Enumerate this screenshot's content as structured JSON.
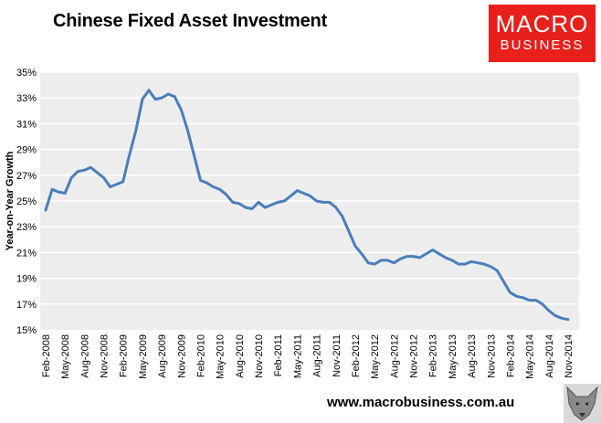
{
  "chart_data": {
    "type": "line",
    "title": "Chinese Fixed Asset Investment",
    "ylabel": "Year-on-Year Growth",
    "xlabel": "",
    "ylim": [
      15,
      35
    ],
    "yticks": [
      "15%",
      "17%",
      "19%",
      "21%",
      "23%",
      "25%",
      "27%",
      "29%",
      "31%",
      "33%",
      "35%"
    ],
    "xticks": [
      "Feb-2008",
      "May-2008",
      "Aug-2008",
      "Nov-2008",
      "Feb-2009",
      "May-2009",
      "Aug-2009",
      "Nov-2009",
      "Feb-2010",
      "May-2010",
      "Aug-2010",
      "Nov-2010",
      "Feb-2011",
      "May-2011",
      "Aug-2011",
      "Nov-2011",
      "Feb-2012",
      "May-2012",
      "Aug-2012",
      "Nov-2012",
      "Feb-2013",
      "May-2013",
      "Aug-2013",
      "Nov-2013",
      "Feb-2014",
      "May-2014",
      "Aug-2014",
      "Nov-2014"
    ],
    "grid": true,
    "legend": "none",
    "color": "#4a7ebb",
    "series": [
      {
        "x": [
          "Feb-2008",
          "Mar-2008",
          "Apr-2008",
          "May-2008",
          "Jun-2008",
          "Jul-2008",
          "Aug-2008",
          "Sep-2008",
          "Oct-2008",
          "Nov-2008",
          "Dec-2008",
          "Feb-2009",
          "Mar-2009",
          "Apr-2009",
          "May-2009",
          "Jun-2009",
          "Jul-2009",
          "Aug-2009",
          "Sep-2009",
          "Oct-2009",
          "Nov-2009",
          "Dec-2009",
          "Feb-2010",
          "Mar-2010",
          "Apr-2010",
          "May-2010",
          "Jun-2010",
          "Jul-2010",
          "Aug-2010",
          "Sep-2010",
          "Oct-2010",
          "Nov-2010",
          "Dec-2010",
          "Feb-2011",
          "Mar-2011",
          "Apr-2011",
          "May-2011",
          "Jun-2011",
          "Jul-2011",
          "Aug-2011",
          "Sep-2011",
          "Oct-2011",
          "Nov-2011",
          "Dec-2011",
          "Feb-2012",
          "Mar-2012",
          "Apr-2012",
          "May-2012",
          "Jun-2012",
          "Jul-2012",
          "Aug-2012",
          "Sep-2012",
          "Oct-2012",
          "Nov-2012",
          "Dec-2012",
          "Feb-2013",
          "Mar-2013",
          "Apr-2013",
          "May-2013",
          "Jun-2013",
          "Jul-2013",
          "Aug-2013",
          "Sep-2013",
          "Oct-2013",
          "Nov-2013",
          "Dec-2013",
          "Feb-2014",
          "Mar-2014",
          "Apr-2014",
          "May-2014",
          "Jun-2014",
          "Jul-2014",
          "Aug-2014",
          "Sep-2014",
          "Oct-2014",
          "Nov-2014"
        ],
        "values": [
          24.3,
          25.9,
          25.7,
          25.6,
          26.8,
          27.3,
          27.4,
          27.6,
          27.2,
          26.8,
          26.1,
          26.5,
          28.6,
          30.5,
          32.9,
          33.6,
          32.9,
          33.0,
          33.3,
          33.1,
          32.1,
          30.5,
          26.6,
          26.4,
          26.1,
          25.9,
          25.5,
          24.9,
          24.8,
          24.5,
          24.4,
          24.9,
          24.5,
          24.9,
          25.0,
          25.4,
          25.8,
          25.6,
          25.4,
          25.0,
          24.9,
          24.9,
          24.5,
          23.8,
          21.5,
          20.9,
          20.2,
          20.1,
          20.4,
          20.4,
          20.2,
          20.5,
          20.7,
          20.7,
          20.6,
          21.2,
          20.9,
          20.6,
          20.4,
          20.1,
          20.1,
          20.3,
          20.2,
          20.1,
          19.9,
          19.6,
          17.9,
          17.6,
          17.5,
          17.3,
          17.3,
          17.0,
          16.5,
          16.1,
          15.9,
          15.8
        ]
      }
    ]
  },
  "logo": {
    "line1": "MACRO",
    "line2": "BUSINESS"
  },
  "footer": {
    "url": "www.macrobusiness.com.au"
  }
}
